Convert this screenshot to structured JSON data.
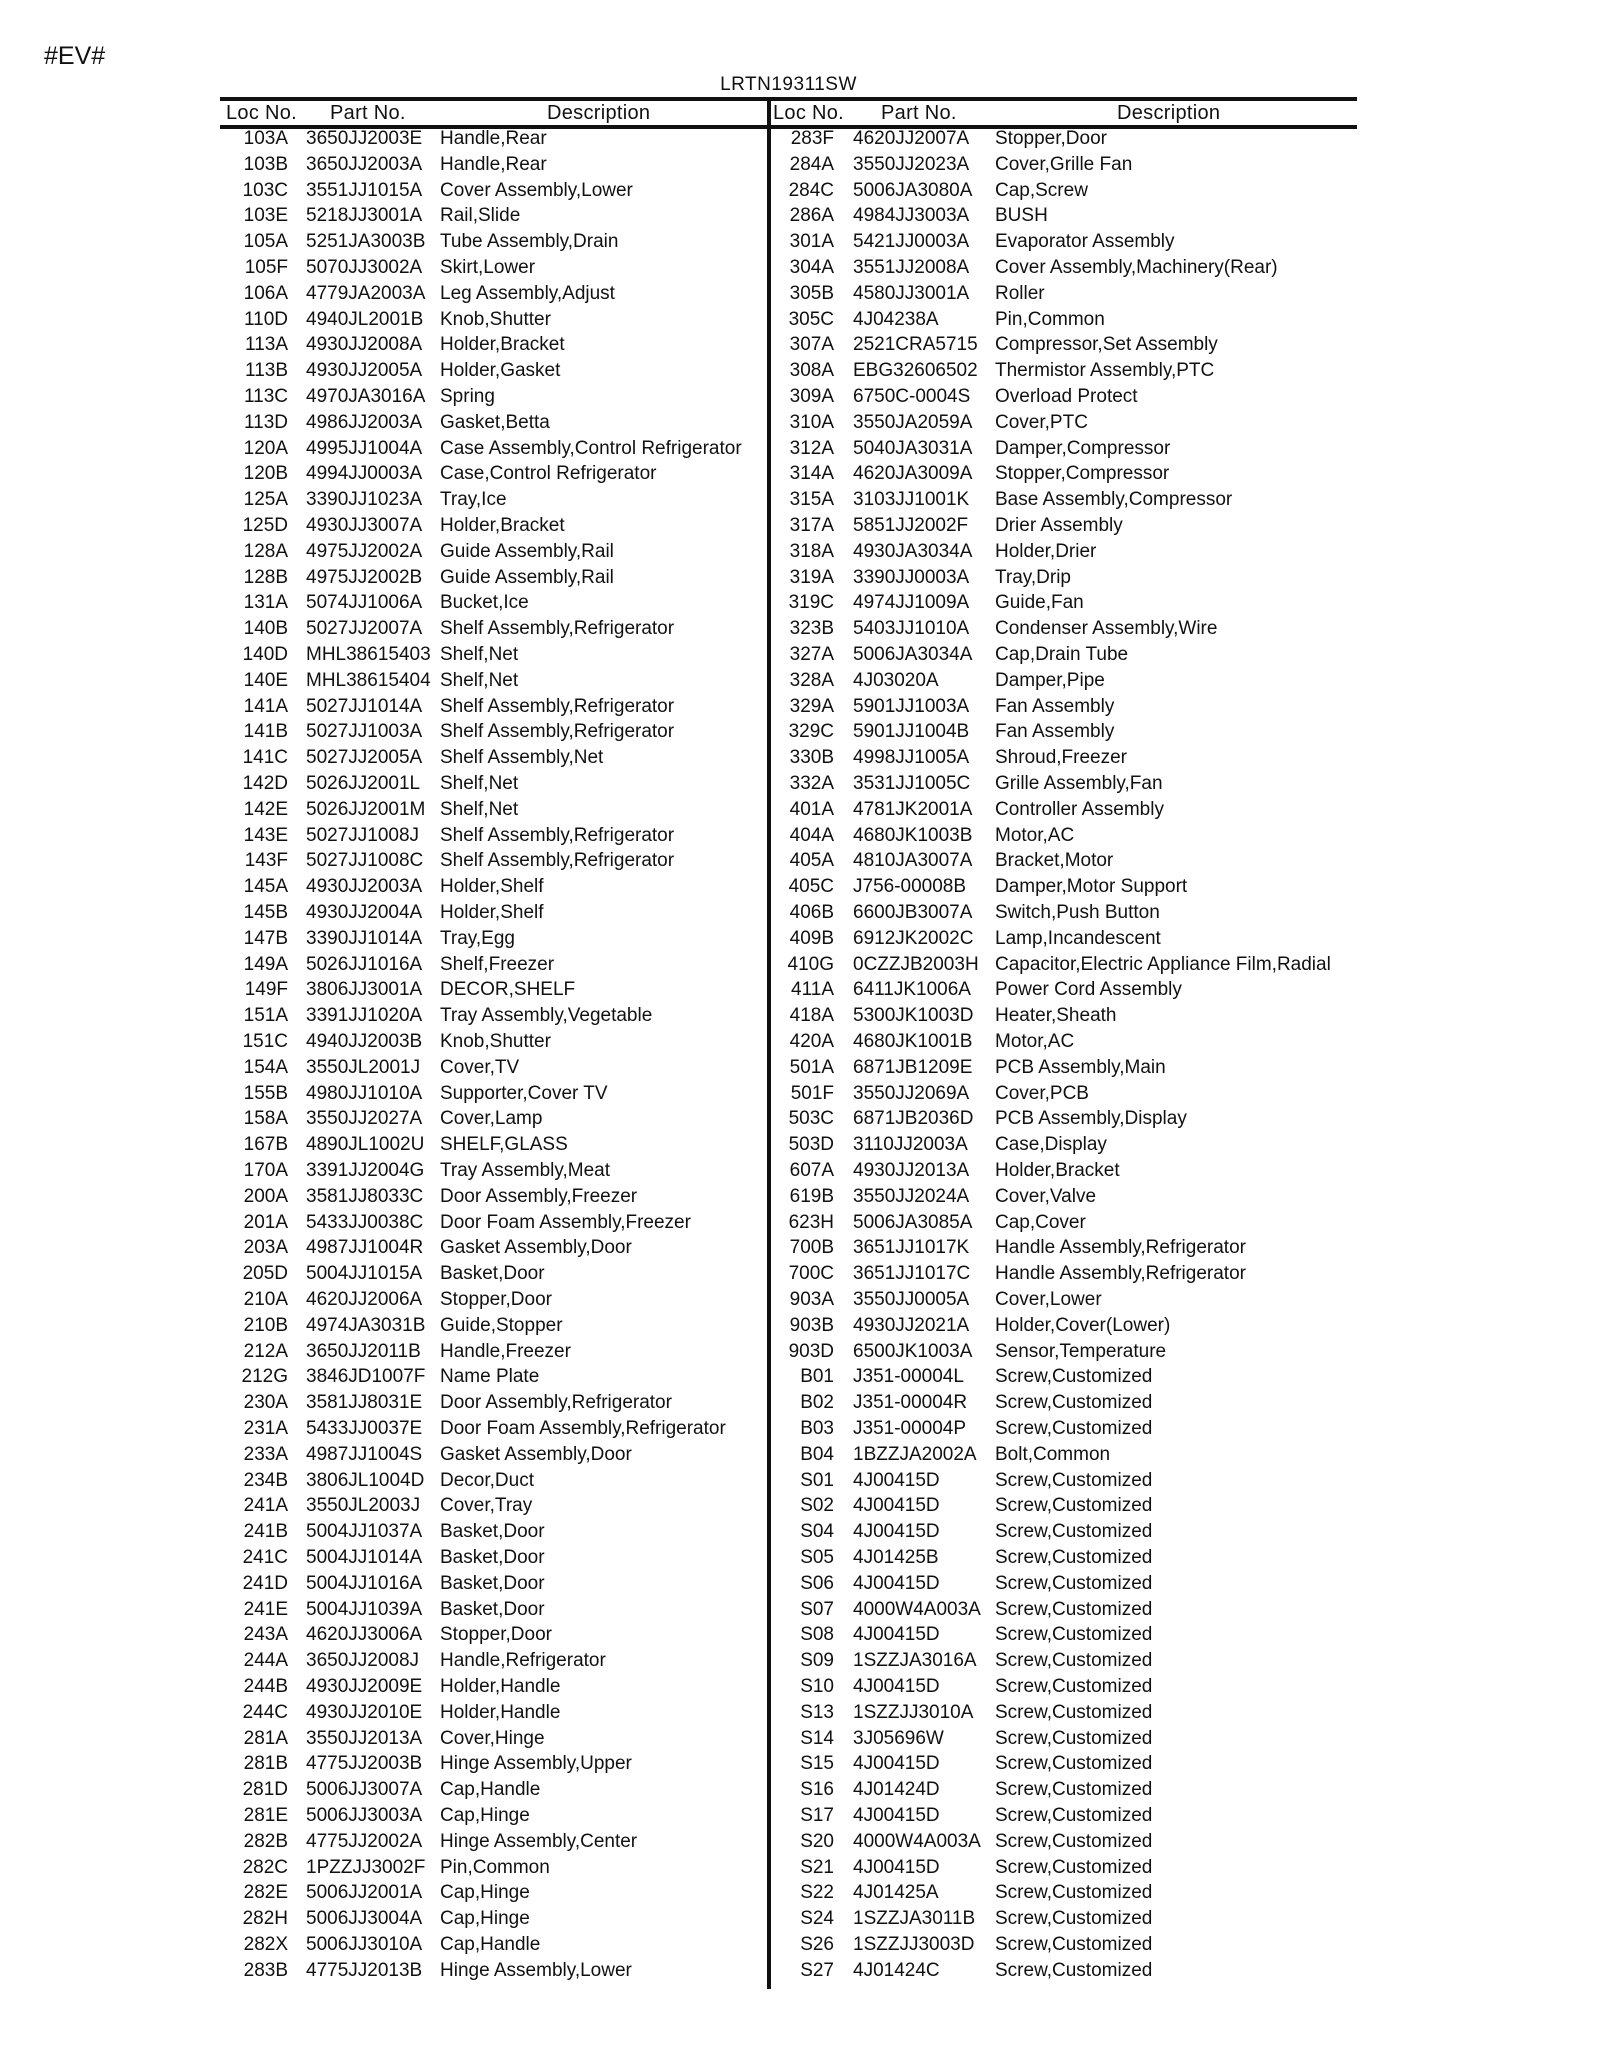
{
  "page_mark": "#EV#",
  "model": "LRTN19311SW",
  "headers": {
    "loc": "Loc No.",
    "part": "Part No.",
    "desc": "Description"
  },
  "left": {
    "rows": [
      [
        "103A",
        "3650JJ2003E",
        "Handle,Rear"
      ],
      [
        "103B",
        "3650JJ2003A",
        "Handle,Rear"
      ],
      [
        "103C",
        "3551JJ1015A",
        "Cover Assembly,Lower"
      ],
      [
        "103E",
        "5218JJ3001A",
        "Rail,Slide"
      ],
      [
        "105A",
        "5251JA3003B",
        "Tube Assembly,Drain"
      ],
      [
        "105F",
        "5070JJ3002A",
        "Skirt,Lower"
      ],
      [
        "106A",
        "4779JA2003A",
        "Leg Assembly,Adjust"
      ],
      [
        "110D",
        "4940JL2001B",
        "Knob,Shutter"
      ],
      [
        "113A",
        "4930JJ2008A",
        "Holder,Bracket"
      ],
      [
        "113B",
        "4930JJ2005A",
        "Holder,Gasket"
      ],
      [
        "113C",
        "4970JA3016A",
        "Spring"
      ],
      [
        "113D",
        "4986JJ2003A",
        "Gasket,Betta"
      ],
      [
        "120A",
        "4995JJ1004A",
        "Case Assembly,Control Refrigerator"
      ],
      [
        "120B",
        "4994JJ0003A",
        "Case,Control Refrigerator"
      ],
      [
        "125A",
        "3390JJ1023A",
        "Tray,Ice"
      ],
      [
        "125D",
        "4930JJ3007A",
        "Holder,Bracket"
      ],
      [
        "128A",
        "4975JJ2002A",
        "Guide Assembly,Rail"
      ],
      [
        "128B",
        "4975JJ2002B",
        "Guide Assembly,Rail"
      ],
      [
        "131A",
        "5074JJ1006A",
        "Bucket,Ice"
      ],
      [
        "140B",
        "5027JJ2007A",
        "Shelf Assembly,Refrigerator"
      ],
      [
        "140D",
        "MHL38615403",
        "Shelf,Net"
      ],
      [
        "140E",
        "MHL38615404",
        "Shelf,Net"
      ],
      [
        "141A",
        "5027JJ1014A",
        "Shelf Assembly,Refrigerator"
      ],
      [
        "141B",
        "5027JJ1003A",
        "Shelf Assembly,Refrigerator"
      ],
      [
        "141C",
        "5027JJ2005A",
        "Shelf Assembly,Net"
      ],
      [
        "142D",
        "5026JJ2001L",
        "Shelf,Net"
      ],
      [
        "142E",
        "5026JJ2001M",
        "Shelf,Net"
      ],
      [
        "143E",
        "5027JJ1008J",
        "Shelf Assembly,Refrigerator"
      ],
      [
        "143F",
        "5027JJ1008C",
        "Shelf Assembly,Refrigerator"
      ],
      [
        "145A",
        "4930JJ2003A",
        "Holder,Shelf"
      ],
      [
        "145B",
        "4930JJ2004A",
        "Holder,Shelf"
      ],
      [
        "147B",
        "3390JJ1014A",
        "Tray,Egg"
      ],
      [
        "149A",
        "5026JJ1016A",
        "Shelf,Freezer"
      ],
      [
        "149F",
        "3806JJ3001A",
        "DECOR,SHELF"
      ],
      [
        "151A",
        "3391JJ1020A",
        "Tray Assembly,Vegetable"
      ],
      [
        "151C",
        "4940JJ2003B",
        "Knob,Shutter"
      ],
      [
        "154A",
        "3550JL2001J",
        "Cover,TV"
      ],
      [
        "155B",
        "4980JJ1010A",
        "Supporter,Cover TV"
      ],
      [
        "158A",
        "3550JJ2027A",
        "Cover,Lamp"
      ],
      [
        "167B",
        "4890JL1002U",
        "SHELF,GLASS"
      ],
      [
        "170A",
        "3391JJ2004G",
        "Tray Assembly,Meat"
      ],
      [
        "200A",
        "3581JJ8033C",
        "Door Assembly,Freezer"
      ],
      [
        "201A",
        "5433JJ0038C",
        "Door Foam Assembly,Freezer"
      ],
      [
        "203A",
        "4987JJ1004R",
        "Gasket Assembly,Door"
      ],
      [
        "205D",
        "5004JJ1015A",
        "Basket,Door"
      ],
      [
        "210A",
        "4620JJ2006A",
        "Stopper,Door"
      ],
      [
        "210B",
        "4974JA3031B",
        "Guide,Stopper"
      ],
      [
        "212A",
        "3650JJ2011B",
        "Handle,Freezer"
      ],
      [
        "212G",
        "3846JD1007F",
        "Name Plate"
      ],
      [
        "230A",
        "3581JJ8031E",
        "Door Assembly,Refrigerator"
      ],
      [
        "231A",
        "5433JJ0037E",
        "Door Foam Assembly,Refrigerator"
      ],
      [
        "233A",
        "4987JJ1004S",
        "Gasket Assembly,Door"
      ],
      [
        "234B",
        "3806JL1004D",
        "Decor,Duct"
      ],
      [
        "241A",
        "3550JL2003J",
        "Cover,Tray"
      ],
      [
        "241B",
        "5004JJ1037A",
        "Basket,Door"
      ],
      [
        "241C",
        "5004JJ1014A",
        "Basket,Door"
      ],
      [
        "241D",
        "5004JJ1016A",
        "Basket,Door"
      ],
      [
        "241E",
        "5004JJ1039A",
        "Basket,Door"
      ],
      [
        "243A",
        "4620JJ3006A",
        "Stopper,Door"
      ],
      [
        "244A",
        "3650JJ2008J",
        "Handle,Refrigerator"
      ],
      [
        "244B",
        "4930JJ2009E",
        "Holder,Handle"
      ],
      [
        "244C",
        "4930JJ2010E",
        "Holder,Handle"
      ],
      [
        "281A",
        "3550JJ2013A",
        "Cover,Hinge"
      ],
      [
        "281B",
        "4775JJ2003B",
        "Hinge Assembly,Upper"
      ],
      [
        "281D",
        "5006JJ3007A",
        "Cap,Handle"
      ],
      [
        "281E",
        "5006JJ3003A",
        "Cap,Hinge"
      ],
      [
        "282B",
        "4775JJ2002A",
        "Hinge Assembly,Center"
      ],
      [
        "282C",
        "1PZZJJ3002F",
        "Pin,Common"
      ],
      [
        "282E",
        "5006JJ2001A",
        "Cap,Hinge"
      ],
      [
        "282H",
        "5006JJ3004A",
        "Cap,Hinge"
      ],
      [
        "282X",
        "5006JJ3010A",
        "Cap,Handle"
      ],
      [
        "283B",
        "4775JJ2013B",
        "Hinge Assembly,Lower"
      ]
    ]
  },
  "right": {
    "rows": [
      [
        "283F",
        "4620JJ2007A",
        "Stopper,Door"
      ],
      [
        "284A",
        "3550JJ2023A",
        "Cover,Grille Fan"
      ],
      [
        "284C",
        "5006JA3080A",
        "Cap,Screw"
      ],
      [
        "286A",
        "4984JJ3003A",
        "BUSH"
      ],
      [
        "301A",
        "5421JJ0003A",
        "Evaporator Assembly"
      ],
      [
        "304A",
        "3551JJ2008A",
        "Cover Assembly,Machinery(Rear)"
      ],
      [
        "305B",
        "4580JJ3001A",
        "Roller"
      ],
      [
        "305C",
        "4J04238A",
        "Pin,Common"
      ],
      [
        "307A",
        "2521CRA5715",
        "Compressor,Set Assembly"
      ],
      [
        "308A",
        "EBG32606502",
        "Thermistor Assembly,PTC"
      ],
      [
        "309A",
        "6750C-0004S",
        "Overload Protect"
      ],
      [
        "310A",
        "3550JA2059A",
        "Cover,PTC"
      ],
      [
        "312A",
        "5040JA3031A",
        "Damper,Compressor"
      ],
      [
        "314A",
        "4620JA3009A",
        "Stopper,Compressor"
      ],
      [
        "315A",
        "3103JJ1001K",
        "Base Assembly,Compressor"
      ],
      [
        "317A",
        "5851JJ2002F",
        "Drier Assembly"
      ],
      [
        "318A",
        "4930JA3034A",
        "Holder,Drier"
      ],
      [
        "319A",
        "3390JJ0003A",
        "Tray,Drip"
      ],
      [
        "319C",
        "4974JJ1009A",
        "Guide,Fan"
      ],
      [
        "323B",
        "5403JJ1010A",
        "Condenser Assembly,Wire"
      ],
      [
        "327A",
        "5006JA3034A",
        "Cap,Drain Tube"
      ],
      [
        "328A",
        "4J03020A",
        "Damper,Pipe"
      ],
      [
        "329A",
        "5901JJ1003A",
        "Fan Assembly"
      ],
      [
        "329C",
        "5901JJ1004B",
        "Fan Assembly"
      ],
      [
        "330B",
        "4998JJ1005A",
        "Shroud,Freezer"
      ],
      [
        "332A",
        "3531JJ1005C",
        "Grille Assembly,Fan"
      ],
      [
        "401A",
        "4781JK2001A",
        "Controller Assembly"
      ],
      [
        "404A",
        "4680JK1003B",
        "Motor,AC"
      ],
      [
        "405A",
        "4810JA3007A",
        "Bracket,Motor"
      ],
      [
        "405C",
        "J756-00008B",
        "Damper,Motor Support"
      ],
      [
        "406B",
        "6600JB3007A",
        "Switch,Push Button"
      ],
      [
        "409B",
        "6912JK2002C",
        "Lamp,Incandescent"
      ],
      [
        "410G",
        "0CZZJB2003H",
        "Capacitor,Electric Appliance Film,Radial"
      ],
      [
        "411A",
        "6411JK1006A",
        "Power Cord Assembly"
      ],
      [
        "418A",
        "5300JK1003D",
        "Heater,Sheath"
      ],
      [
        "420A",
        "4680JK1001B",
        "Motor,AC"
      ],
      [
        "501A",
        "6871JB1209E",
        "PCB Assembly,Main"
      ],
      [
        "501F",
        "3550JJ2069A",
        "Cover,PCB"
      ],
      [
        "503C",
        "6871JB2036D",
        "PCB Assembly,Display"
      ],
      [
        "503D",
        "3110JJ2003A",
        "Case,Display"
      ],
      [
        "607A",
        "4930JJ2013A",
        "Holder,Bracket"
      ],
      [
        "619B",
        "3550JJ2024A",
        "Cover,Valve"
      ],
      [
        "623H",
        "5006JA3085A",
        "Cap,Cover"
      ],
      [
        "700B",
        "3651JJ1017K",
        "Handle Assembly,Refrigerator"
      ],
      [
        "700C",
        "3651JJ1017C",
        "Handle Assembly,Refrigerator"
      ],
      [
        "903A",
        "3550JJ0005A",
        "Cover,Lower"
      ],
      [
        "903B",
        "4930JJ2021A",
        "Holder,Cover(Lower)"
      ],
      [
        "903D",
        "6500JK1003A",
        "Sensor,Temperature"
      ],
      [
        "B01",
        "J351-00004L",
        "Screw,Customized"
      ],
      [
        "B02",
        "J351-00004R",
        "Screw,Customized"
      ],
      [
        "B03",
        "J351-00004P",
        "Screw,Customized"
      ],
      [
        "B04",
        "1BZZJA2002A",
        "Bolt,Common"
      ],
      [
        "S01",
        "4J00415D",
        "Screw,Customized"
      ],
      [
        "S02",
        "4J00415D",
        "Screw,Customized"
      ],
      [
        "S04",
        "4J00415D",
        "Screw,Customized"
      ],
      [
        "S05",
        "4J01425B",
        "Screw,Customized"
      ],
      [
        "S06",
        "4J00415D",
        "Screw,Customized"
      ],
      [
        "S07",
        "4000W4A003A",
        "Screw,Customized"
      ],
      [
        "S08",
        "4J00415D",
        "Screw,Customized"
      ],
      [
        "S09",
        "1SZZJA3016A",
        "Screw,Customized"
      ],
      [
        "S10",
        "4J00415D",
        "Screw,Customized"
      ],
      [
        "S13",
        "1SZZJJ3010A",
        "Screw,Customized"
      ],
      [
        "S14",
        "3J05696W",
        "Screw,Customized"
      ],
      [
        "S15",
        "4J00415D",
        "Screw,Customized"
      ],
      [
        "S16",
        "4J01424D",
        "Screw,Customized"
      ],
      [
        "S17",
        "4J00415D",
        "Screw,Customized"
      ],
      [
        "S20",
        "4000W4A003A",
        "Screw,Customized"
      ],
      [
        "S21",
        "4J00415D",
        "Screw,Customized"
      ],
      [
        "S22",
        "4J01425A",
        "Screw,Customized"
      ],
      [
        "S24",
        "1SZZJA3011B",
        "Screw,Customized"
      ],
      [
        "S26",
        "1SZZJJ3003D",
        "Screw,Customized"
      ],
      [
        "S27",
        "4J01424C",
        "Screw,Customized"
      ]
    ]
  }
}
